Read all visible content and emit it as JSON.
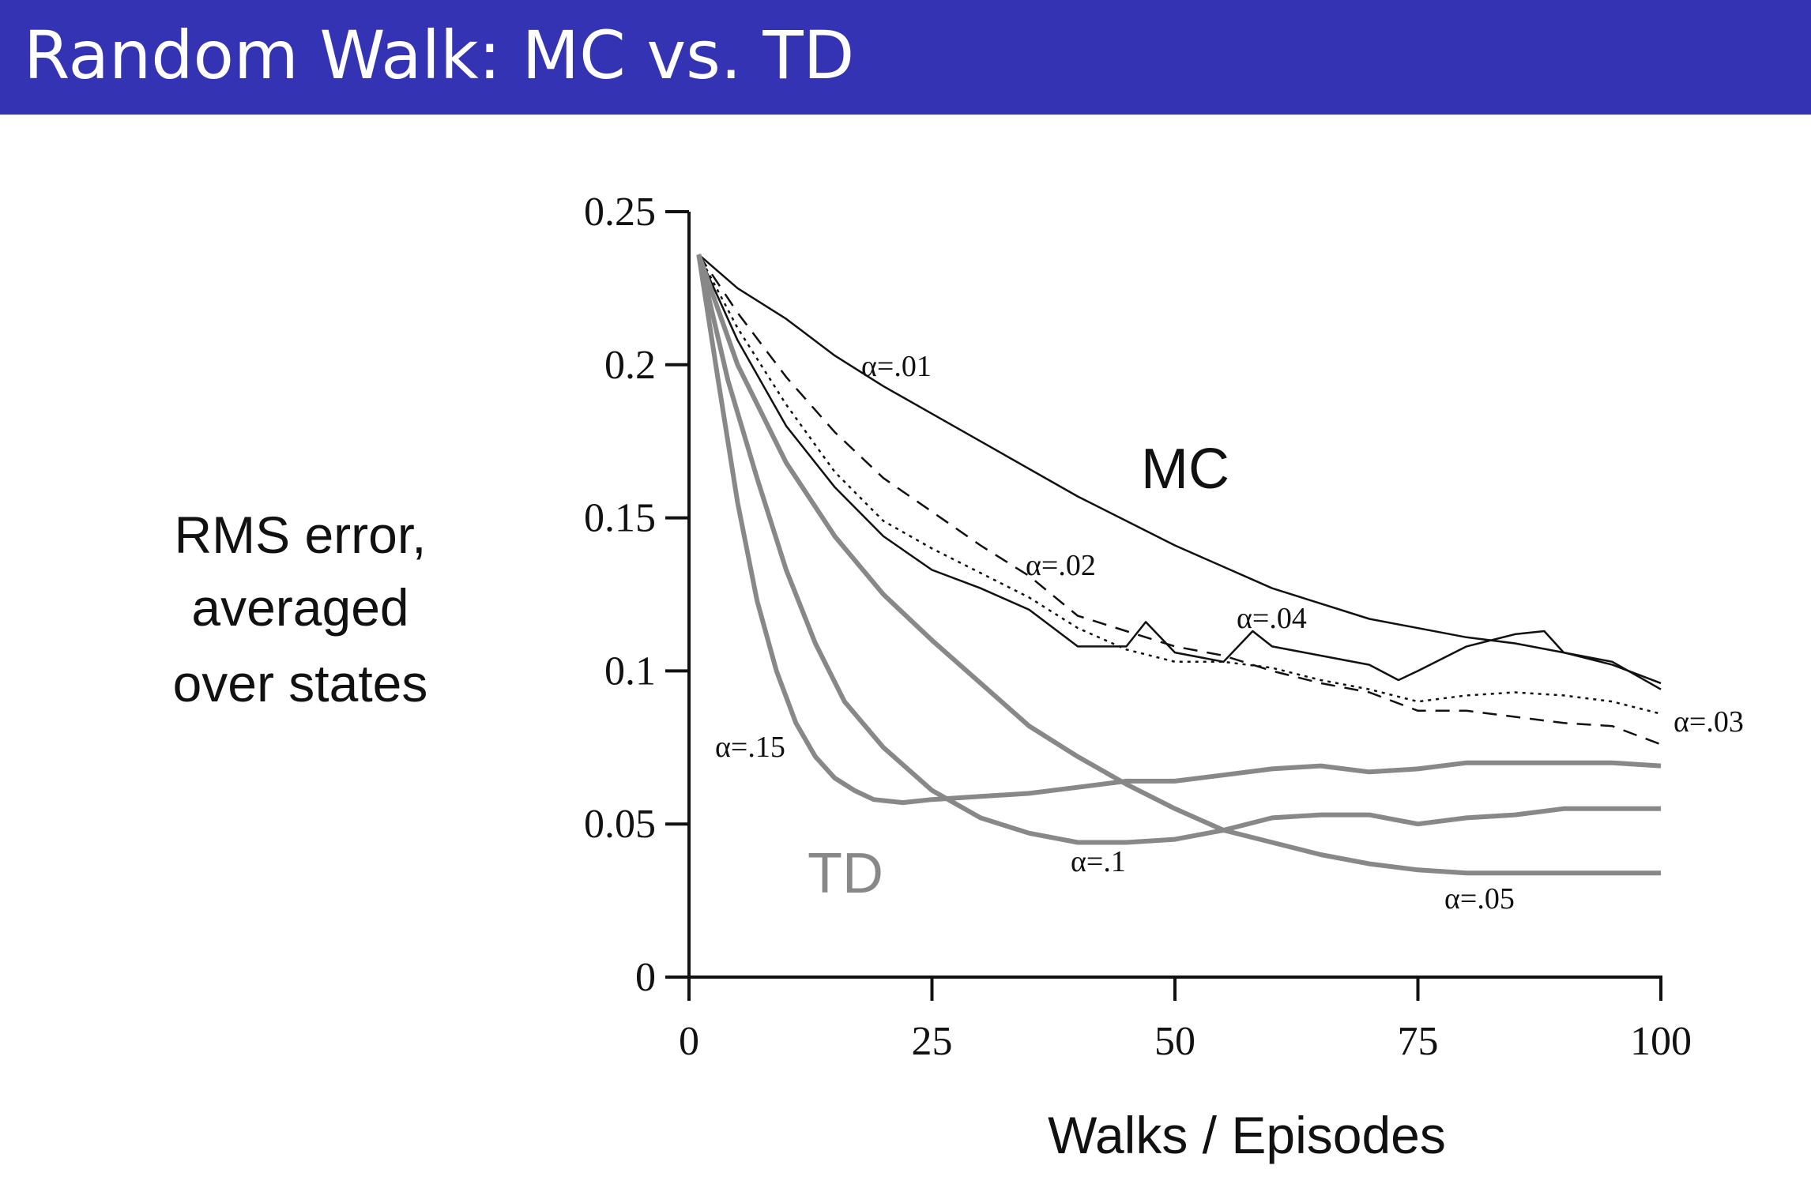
{
  "slide": {
    "title": "Random Walk: MC vs. TD"
  },
  "colors": {
    "title_bar": "#3333b3",
    "mc": "#111111",
    "td": "#888888"
  },
  "chart_data": {
    "type": "line",
    "xlabel": "Walks / Episodes",
    "ylabel_lines": [
      "RMS error,",
      "averaged",
      "over states"
    ],
    "xlim": [
      0,
      100
    ],
    "ylim": [
      0,
      0.25
    ],
    "x_ticks": [
      "0",
      "25",
      "50",
      "75",
      "100"
    ],
    "y_ticks": [
      "0",
      "0.05",
      "0.1",
      "0.15",
      "0.2",
      "0.25"
    ],
    "grid": false,
    "group_labels": {
      "mc": "MC",
      "td": "TD"
    },
    "series": [
      {
        "name": "α=.01",
        "group": "MC",
        "style": "solid",
        "x": [
          1,
          5,
          10,
          15,
          20,
          25,
          30,
          40,
          50,
          60,
          70,
          80,
          85,
          90,
          95,
          100
        ],
        "y": [
          0.236,
          0.225,
          0.215,
          0.203,
          0.193,
          0.184,
          0.175,
          0.157,
          0.141,
          0.127,
          0.117,
          0.111,
          0.109,
          0.106,
          0.102,
          0.096
        ]
      },
      {
        "name": "α=.02",
        "group": "MC",
        "style": "dashed",
        "x": [
          1,
          5,
          10,
          15,
          20,
          25,
          30,
          35,
          40,
          45,
          50,
          55,
          60,
          65,
          70,
          75,
          80,
          85,
          90,
          95,
          100
        ],
        "y": [
          0.236,
          0.217,
          0.196,
          0.178,
          0.163,
          0.152,
          0.141,
          0.131,
          0.118,
          0.113,
          0.108,
          0.105,
          0.1,
          0.096,
          0.093,
          0.087,
          0.087,
          0.085,
          0.083,
          0.082,
          0.076
        ]
      },
      {
        "name": "α=.03",
        "group": "MC",
        "style": "dotted",
        "x": [
          1,
          5,
          10,
          15,
          20,
          25,
          30,
          35,
          40,
          45,
          50,
          55,
          60,
          65,
          70,
          75,
          80,
          85,
          90,
          95,
          100
        ],
        "y": [
          0.236,
          0.212,
          0.187,
          0.165,
          0.149,
          0.14,
          0.132,
          0.124,
          0.114,
          0.107,
          0.103,
          0.103,
          0.101,
          0.097,
          0.094,
          0.09,
          0.092,
          0.093,
          0.092,
          0.09,
          0.086
        ]
      },
      {
        "name": "α=.04",
        "group": "MC",
        "style": "solid",
        "x": [
          1,
          5,
          10,
          15,
          20,
          25,
          30,
          35,
          40,
          45,
          47,
          50,
          55,
          58,
          60,
          65,
          70,
          73,
          75,
          80,
          85,
          88,
          90,
          95,
          100
        ],
        "y": [
          0.236,
          0.208,
          0.18,
          0.16,
          0.144,
          0.133,
          0.127,
          0.12,
          0.108,
          0.108,
          0.116,
          0.106,
          0.103,
          0.113,
          0.108,
          0.105,
          0.102,
          0.097,
          0.1,
          0.108,
          0.112,
          0.113,
          0.106,
          0.103,
          0.094
        ]
      },
      {
        "name": "α=.05",
        "group": "TD",
        "style": "solid",
        "x": [
          1,
          5,
          10,
          15,
          20,
          25,
          30,
          35,
          40,
          45,
          50,
          55,
          60,
          65,
          70,
          75,
          80,
          85,
          90,
          95,
          100
        ],
        "y": [
          0.236,
          0.2,
          0.168,
          0.144,
          0.125,
          0.11,
          0.096,
          0.082,
          0.072,
          0.063,
          0.055,
          0.048,
          0.044,
          0.04,
          0.037,
          0.035,
          0.034,
          0.034,
          0.034,
          0.034,
          0.034
        ]
      },
      {
        "name": "α=.1",
        "group": "TD",
        "style": "solid",
        "x": [
          1,
          4,
          7,
          10,
          13,
          16,
          20,
          25,
          30,
          35,
          40,
          45,
          50,
          55,
          60,
          65,
          70,
          75,
          80,
          85,
          90,
          95,
          100
        ],
        "y": [
          0.236,
          0.195,
          0.163,
          0.133,
          0.109,
          0.09,
          0.075,
          0.061,
          0.052,
          0.047,
          0.044,
          0.044,
          0.045,
          0.048,
          0.052,
          0.053,
          0.053,
          0.05,
          0.052,
          0.053,
          0.055,
          0.055,
          0.055
        ]
      },
      {
        "name": "α=.15",
        "group": "TD",
        "style": "solid",
        "x": [
          1,
          3,
          5,
          7,
          9,
          11,
          13,
          15,
          17,
          19,
          22,
          25,
          30,
          35,
          40,
          45,
          50,
          55,
          60,
          65,
          70,
          75,
          80,
          85,
          90,
          95,
          100
        ],
        "y": [
          0.236,
          0.195,
          0.155,
          0.123,
          0.1,
          0.083,
          0.072,
          0.065,
          0.061,
          0.058,
          0.057,
          0.058,
          0.059,
          0.06,
          0.062,
          0.064,
          0.064,
          0.066,
          0.068,
          0.069,
          0.067,
          0.068,
          0.07,
          0.07,
          0.07,
          0.07,
          0.069
        ]
      }
    ]
  }
}
